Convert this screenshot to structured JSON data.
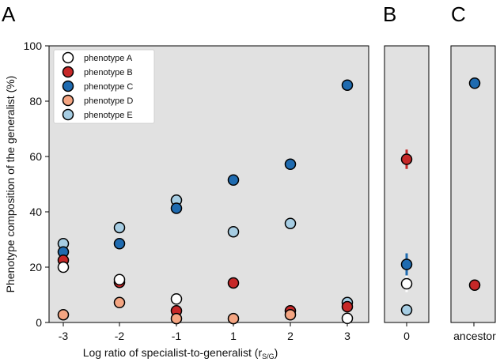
{
  "colors": {
    "phenotype_A": "#ffffff",
    "phenotype_B": "#c62828",
    "phenotype_C": "#1f6bb0",
    "phenotype_D": "#f4a582",
    "phenotype_E": "#a6cde3",
    "panel_bg": "#e1e1e1"
  },
  "panel_labels": {
    "a": "A",
    "b": "B",
    "c": "C"
  },
  "chart_data": [
    {
      "panel": "A",
      "type": "scatter",
      "xlabel_main": "Log ratio of specialist-to-generalist (r",
      "xlabel_sub": "S/G",
      "xlabel_close": ")",
      "ylabel": "Phenotype composition of the generalist (%)",
      "x_ticks": [
        "-3",
        "-2",
        "-1",
        "1",
        "2",
        "3"
      ],
      "x_positions": [
        -3,
        -2,
        -1,
        1,
        2,
        3
      ],
      "y_ticks": [
        "0",
        "20",
        "40",
        "60",
        "80",
        "100"
      ],
      "ylim": [
        0,
        100
      ],
      "legend": [
        "phenotype A",
        "phenotype B",
        "phenotype C",
        "phenotype D",
        "phenotype E"
      ],
      "series": [
        {
          "name": "phenotype A",
          "key": "phenotype_A",
          "values": [
            20,
            15.5,
            8.5,
            null,
            null,
            1.5
          ]
        },
        {
          "name": "phenotype B",
          "key": "phenotype_B",
          "values": [
            22.5,
            14.5,
            4.2,
            14.3,
            4.2,
            5.7
          ]
        },
        {
          "name": "phenotype C",
          "key": "phenotype_C",
          "values": [
            25.5,
            28.5,
            41.3,
            51.5,
            57.2,
            85.8
          ]
        },
        {
          "name": "phenotype D",
          "key": "phenotype_D",
          "values": [
            2.8,
            7.2,
            1.4,
            1.4,
            2.8,
            null
          ]
        },
        {
          "name": "phenotype E",
          "key": "phenotype_E",
          "values": [
            28.5,
            34.3,
            44.2,
            32.8,
            35.8,
            7.2
          ]
        }
      ]
    },
    {
      "panel": "B",
      "type": "scatter",
      "x_tick": "0",
      "ylim": [
        0,
        100
      ],
      "points": [
        {
          "name": "phenotype B",
          "key": "phenotype_B",
          "value": 59,
          "err": 3.5
        },
        {
          "name": "phenotype C",
          "key": "phenotype_C",
          "value": 21,
          "err": 4
        },
        {
          "name": "phenotype A",
          "key": "phenotype_A",
          "value": 14,
          "err": 3
        },
        {
          "name": "phenotype E",
          "key": "phenotype_E",
          "value": 4.5,
          "err": 1
        }
      ]
    },
    {
      "panel": "C",
      "type": "scatter",
      "x_tick": "ancestor",
      "ylim": [
        0,
        100
      ],
      "points": [
        {
          "name": "phenotype C",
          "key": "phenotype_C",
          "value": 86.5
        },
        {
          "name": "phenotype B",
          "key": "phenotype_B",
          "value": 13.5
        }
      ]
    }
  ]
}
